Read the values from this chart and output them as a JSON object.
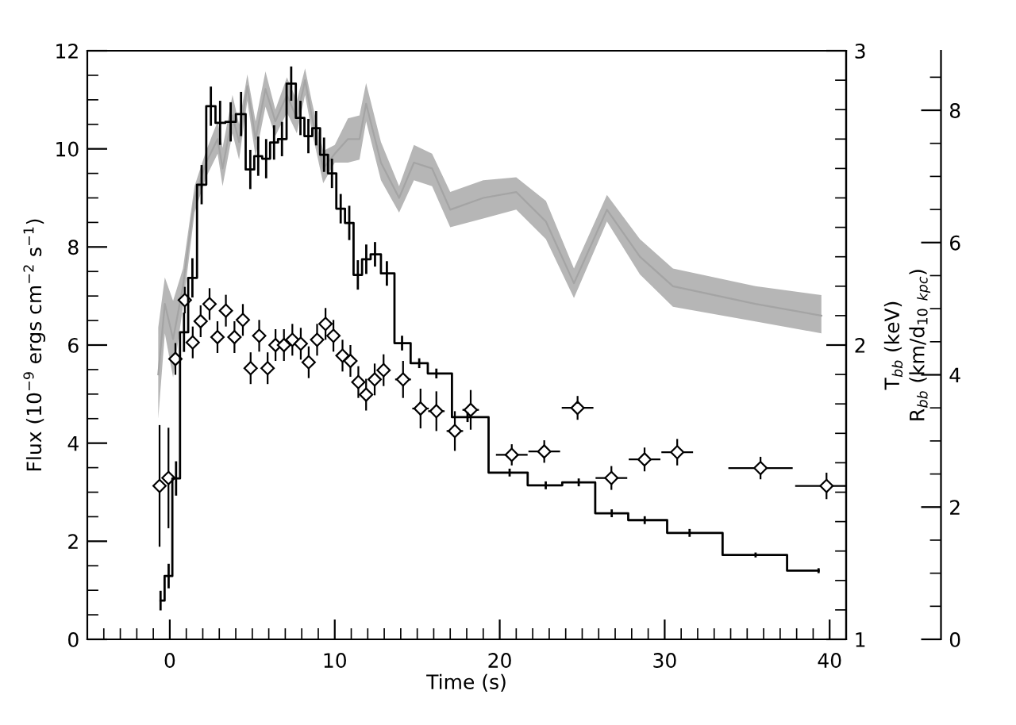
{
  "chart_data": {
    "type": "step",
    "xlabel": "Time (s)",
    "ylabel": "Flux (10$^{−9}$ ergs cm$^{−2}$ s$^{−1}$)",
    "y2label": "T$_{bb}$ (keV)",
    "y3label": "R$_{bb}$ (km/d$_{10}$ $_{kpc}$)",
    "xlim": [
      -5,
      41
    ],
    "xticks": [
      0,
      10,
      20,
      30,
      40
    ],
    "ylim": [
      0,
      12
    ],
    "yticks": [
      0,
      2,
      4,
      6,
      8,
      10,
      12
    ],
    "y2lim": [
      1,
      3
    ],
    "y2ticks": [
      1,
      2,
      3
    ],
    "y3lim": [
      0,
      8.9
    ],
    "y3ticks": [
      0,
      2,
      4,
      6,
      8
    ],
    "grid": false,
    "series": [
      {
        "color": "#000000",
        "x": [
          -0.56,
          -0.07,
          0.38,
          0.86,
          1.37,
          1.93,
          2.49,
          3.05,
          3.69,
          4.32,
          4.88,
          5.36,
          5.84,
          6.32,
          6.8,
          7.36,
          7.92,
          8.4,
          8.87,
          9.35,
          9.83,
          10.36,
          10.88,
          11.4,
          11.91,
          12.44,
          13.16,
          14.08,
          15.12,
          16.16,
          18.05,
          20.6,
          22.79,
          24.79,
          26.79,
          28.79,
          31.51,
          35.51,
          39.33
        ],
        "values": [
          0.79,
          1.29,
          3.28,
          6.26,
          7.37,
          9.27,
          10.87,
          10.53,
          10.55,
          10.71,
          9.58,
          9.85,
          9.8,
          10.13,
          10.2,
          11.33,
          10.63,
          10.26,
          10.42,
          9.88,
          9.5,
          8.78,
          8.49,
          7.43,
          7.75,
          7.85,
          7.46,
          6.04,
          5.63,
          5.42,
          4.53,
          3.4,
          3.14,
          3.2,
          2.57,
          2.43,
          2.17,
          1.72,
          1.4
        ],
        "errors": [
          0.2,
          0.25,
          0.35,
          0.4,
          0.4,
          0.4,
          0.4,
          0.45,
          0.4,
          0.45,
          0.4,
          0.4,
          0.4,
          0.35,
          0.35,
          0.35,
          0.35,
          0.35,
          0.35,
          0.35,
          0.3,
          0.3,
          0.35,
          0.3,
          0.3,
          0.25,
          0.25,
          0.15,
          0.1,
          0.1,
          0.1,
          0.08,
          0.08,
          0.08,
          0.08,
          0.08,
          0.08,
          0.05,
          0.05
        ]
      },
      {
        "type": "line",
        "axis": "y2",
        "color": "#a4a4a4",
        "x": [
          -0.7,
          -0.3,
          0.2,
          0.8,
          1.5,
          2.2,
          2.9,
          3.2,
          3.8,
          4.2,
          4.7,
          5.2,
          5.8,
          6.4,
          7.1,
          7.7,
          8.2,
          8.6,
          9.3,
          10.0,
          10.8,
          11.5,
          11.9,
          12.8,
          13.9,
          14.8,
          15.9,
          17.0,
          19.0,
          21.0,
          22.8,
          24.5,
          26.5,
          28.5,
          30.5,
          35.5,
          39.5
        ],
        "upper": [
          2.06,
          2.23,
          2.15,
          2.26,
          2.54,
          2.66,
          2.76,
          2.67,
          2.85,
          2.75,
          2.92,
          2.76,
          2.93,
          2.8,
          2.91,
          2.83,
          2.94,
          2.83,
          2.66,
          2.68,
          2.77,
          2.78,
          2.89,
          2.69,
          2.54,
          2.68,
          2.65,
          2.52,
          2.56,
          2.57,
          2.49,
          2.26,
          2.51,
          2.36,
          2.26,
          2.2,
          2.17
        ],
        "lower": [
          1.75,
          2.04,
          1.89,
          2.13,
          2.45,
          2.57,
          2.65,
          2.54,
          2.72,
          2.63,
          2.83,
          2.64,
          2.81,
          2.71,
          2.79,
          2.72,
          2.85,
          2.73,
          2.55,
          2.62,
          2.62,
          2.63,
          2.76,
          2.56,
          2.45,
          2.56,
          2.54,
          2.4,
          2.43,
          2.46,
          2.36,
          2.16,
          2.42,
          2.24,
          2.13,
          2.08,
          2.04
        ],
        "values": [
          1.9,
          2.14,
          2.02,
          2.2,
          2.5,
          2.62,
          2.7,
          2.6,
          2.78,
          2.69,
          2.88,
          2.7,
          2.87,
          2.76,
          2.85,
          2.77,
          2.9,
          2.78,
          2.6,
          2.65,
          2.7,
          2.7,
          2.82,
          2.62,
          2.5,
          2.62,
          2.6,
          2.46,
          2.5,
          2.52,
          2.42,
          2.21,
          2.46,
          2.3,
          2.2,
          2.14,
          2.1
        ]
      },
      {
        "type": "scatter",
        "axis": "y3",
        "marker": "diamond",
        "color": "#000000",
        "x": [
          -0.62,
          -0.08,
          0.34,
          0.91,
          1.39,
          1.87,
          2.41,
          2.89,
          3.4,
          3.92,
          4.43,
          4.9,
          5.42,
          5.93,
          6.41,
          6.92,
          7.43,
          7.94,
          8.42,
          8.93,
          9.44,
          9.92,
          10.47,
          10.95,
          11.43,
          11.9,
          12.42,
          12.96,
          14.14,
          15.2,
          16.16,
          17.28,
          18.24,
          20.73,
          22.7,
          24.72,
          26.77,
          28.78,
          30.76,
          35.81,
          39.81
        ],
        "values": [
          2.32,
          2.44,
          4.24,
          5.13,
          4.49,
          4.81,
          5.07,
          4.57,
          4.97,
          4.57,
          4.83,
          4.1,
          4.59,
          4.1,
          4.45,
          4.45,
          4.53,
          4.47,
          4.19,
          4.53,
          4.77,
          4.59,
          4.29,
          4.21,
          3.89,
          3.7,
          3.93,
          4.07,
          3.93,
          3.49,
          3.45,
          3.15,
          3.47,
          2.79,
          2.84,
          3.5,
          2.44,
          2.72,
          2.83,
          2.59,
          2.32
        ],
        "errors": [
          0.92,
          0.76,
          0.24,
          0.2,
          0.24,
          0.24,
          0.24,
          0.24,
          0.24,
          0.24,
          0.24,
          0.24,
          0.24,
          0.24,
          0.24,
          0.24,
          0.24,
          0.24,
          0.24,
          0.24,
          0.24,
          0.24,
          0.24,
          0.24,
          0.24,
          0.24,
          0.24,
          0.24,
          0.28,
          0.3,
          0.3,
          0.3,
          0.3,
          0.16,
          0.17,
          0.18,
          0.18,
          0.18,
          0.2,
          0.17,
          0.2
        ],
        "xerrors": [
          0.32,
          0.3,
          0.32,
          0.29,
          0.3,
          0.3,
          0.3,
          0.3,
          0.3,
          0.3,
          0.3,
          0.3,
          0.3,
          0.3,
          0.3,
          0.3,
          0.3,
          0.3,
          0.3,
          0.3,
          0.3,
          0.3,
          0.3,
          0.3,
          0.3,
          0.3,
          0.3,
          0.3,
          0.48,
          0.5,
          0.5,
          0.5,
          0.5,
          0.96,
          0.96,
          0.96,
          0.96,
          0.96,
          0.96,
          1.95,
          1.9
        ]
      }
    ]
  }
}
